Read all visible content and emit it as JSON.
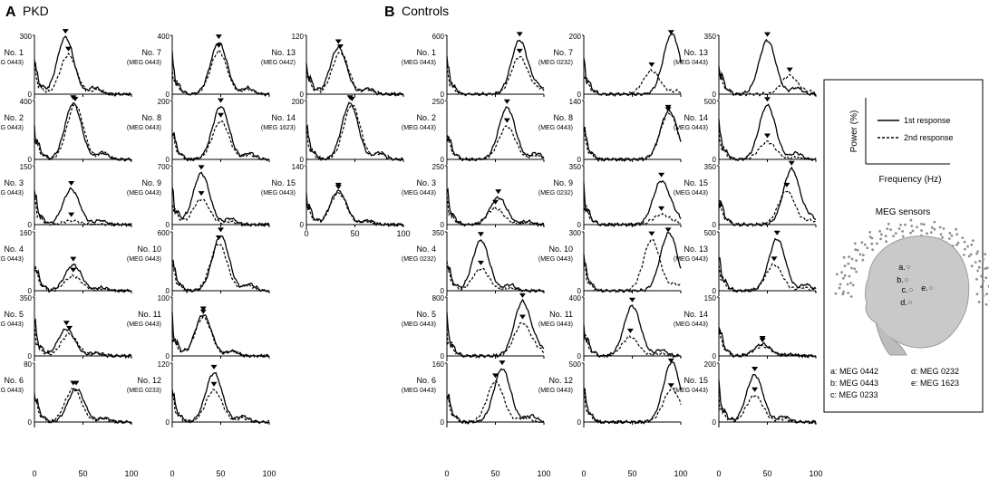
{
  "panels": {
    "A": {
      "letter": "A",
      "label": "PKD"
    },
    "B": {
      "letter": "B",
      "label": "Controls"
    }
  },
  "x_ticks": [
    "0",
    "50",
    "100"
  ],
  "legend": {
    "y_label": "Power (%)",
    "x_label": "Frequency (Hz)",
    "first": "1st response",
    "second": "2nd response"
  },
  "sensors": {
    "title": "MEG sensors",
    "markers": [
      "a",
      "b",
      "c",
      "d",
      "e"
    ],
    "list": [
      "a: MEG 0442",
      "b: MEG 0443",
      "c: MEG 0233",
      "d: MEG 0232",
      "e: MEG 1623"
    ]
  },
  "chart_data": [
    {
      "type": "line",
      "group": "PKD",
      "title": "No. 1",
      "sensor": "(MEG 0443)",
      "ymax_label": "300",
      "ylim": [
        0,
        300
      ],
      "xlim": [
        0,
        100
      ],
      "series": [
        {
          "name": "1st response",
          "peak_x": 32,
          "peak_y": 290
        },
        {
          "name": "2nd response",
          "peak_x": 35,
          "peak_y": 200
        }
      ]
    },
    {
      "type": "line",
      "group": "PKD",
      "title": "No. 2",
      "sensor": "(MEG 0443)",
      "ymax_label": "400",
      "ylim": [
        0,
        400
      ],
      "xlim": [
        0,
        100
      ],
      "series": [
        {
          "name": "1st response",
          "peak_x": 40,
          "peak_y": 380
        },
        {
          "name": "2nd response",
          "peak_x": 42,
          "peak_y": 370
        }
      ]
    },
    {
      "type": "line",
      "group": "PKD",
      "title": "No. 3",
      "sensor": "(MEG 0443)",
      "ymax_label": "150",
      "ylim": [
        0,
        150
      ],
      "xlim": [
        0,
        100
      ],
      "series": [
        {
          "name": "1st response",
          "peak_x": 38,
          "peak_y": 90
        },
        {
          "name": "2nd response",
          "peak_x": 38,
          "peak_y": 10
        }
      ]
    },
    {
      "type": "line",
      "group": "PKD",
      "title": "No. 4",
      "sensor": "(MEG 0443)",
      "ymax_label": "160",
      "ylim": [
        0,
        160
      ],
      "xlim": [
        0,
        100
      ],
      "series": [
        {
          "name": "1st response",
          "peak_x": 40,
          "peak_y": 70
        },
        {
          "name": "2nd response",
          "peak_x": 40,
          "peak_y": 40
        }
      ]
    },
    {
      "type": "line",
      "group": "PKD",
      "title": "No. 5",
      "sensor": "(MEG 0443)",
      "ymax_label": "350",
      "ylim": [
        0,
        350
      ],
      "xlim": [
        0,
        100
      ],
      "series": [
        {
          "name": "1st response",
          "peak_x": 33,
          "peak_y": 160
        },
        {
          "name": "2nd response",
          "peak_x": 36,
          "peak_y": 130
        }
      ]
    },
    {
      "type": "line",
      "group": "PKD",
      "title": "No. 6",
      "sensor": "(MEG 0443)",
      "ymax_label": "80",
      "ylim": [
        0,
        80
      ],
      "xlim": [
        0,
        100
      ],
      "series": [
        {
          "name": "1st response",
          "peak_x": 43,
          "peak_y": 45
        },
        {
          "name": "2nd response",
          "peak_x": 40,
          "peak_y": 45
        }
      ]
    },
    {
      "type": "line",
      "group": "PKD",
      "title": "No. 7",
      "sensor": "(MEG 0443)",
      "ymax_label": "400",
      "ylim": [
        0,
        400
      ],
      "xlim": [
        0,
        100
      ],
      "series": [
        {
          "name": "1st response",
          "peak_x": 48,
          "peak_y": 350
        },
        {
          "name": "2nd response",
          "peak_x": 48,
          "peak_y": 290
        }
      ]
    },
    {
      "type": "line",
      "group": "PKD",
      "title": "No. 8",
      "sensor": "(MEG 0443)",
      "ymax_label": "200",
      "ylim": [
        0,
        200
      ],
      "xlim": [
        0,
        100
      ],
      "series": [
        {
          "name": "1st response",
          "peak_x": 50,
          "peak_y": 180
        },
        {
          "name": "2nd response",
          "peak_x": 50,
          "peak_y": 130
        }
      ]
    },
    {
      "type": "line",
      "group": "PKD",
      "title": "No. 9",
      "sensor": "(MEG 0443)",
      "ymax_label": "700",
      "ylim": [
        0,
        700
      ],
      "xlim": [
        0,
        100
      ],
      "series": [
        {
          "name": "1st response",
          "peak_x": 30,
          "peak_y": 610
        },
        {
          "name": "2nd response",
          "peak_x": 30,
          "peak_y": 300
        }
      ]
    },
    {
      "type": "line",
      "group": "PKD",
      "title": "No. 10",
      "sensor": "(MEG 0443)",
      "ymax_label": "600",
      "ylim": [
        0,
        600
      ],
      "xlim": [
        0,
        100
      ],
      "series": [
        {
          "name": "1st response",
          "peak_x": 50,
          "peak_y": 560
        },
        {
          "name": "2nd response",
          "peak_x": 48,
          "peak_y": 480
        }
      ]
    },
    {
      "type": "line",
      "group": "PKD",
      "title": "No. 11",
      "sensor": "(MEG 0443)",
      "ymax_label": "100",
      "ylim": [
        0,
        100
      ],
      "xlim": [
        0,
        100
      ],
      "series": [
        {
          "name": "1st response",
          "peak_x": 32,
          "peak_y": 70
        },
        {
          "name": "2nd response",
          "peak_x": 32,
          "peak_y": 65
        }
      ]
    },
    {
      "type": "line",
      "group": "PKD",
      "title": "No. 12",
      "sensor": "(MEG 0233)",
      "ymax_label": "120",
      "ylim": [
        0,
        120
      ],
      "xlim": [
        0,
        100
      ],
      "series": [
        {
          "name": "1st response",
          "peak_x": 43,
          "peak_y": 100
        },
        {
          "name": "2nd response",
          "peak_x": 43,
          "peak_y": 65
        }
      ]
    },
    {
      "type": "line",
      "group": "PKD",
      "title": "No. 13",
      "sensor": "(MEG 0442)",
      "ymax_label": "120",
      "ylim": [
        0,
        120
      ],
      "xlim": [
        0,
        100
      ],
      "series": [
        {
          "name": "1st response",
          "peak_x": 33,
          "peak_y": 95
        },
        {
          "name": "2nd response",
          "peak_x": 35,
          "peak_y": 85
        }
      ]
    },
    {
      "type": "line",
      "group": "PKD",
      "title": "No. 14",
      "sensor": "(MEG 1623)",
      "ymax_label": "200",
      "ylim": [
        0,
        200
      ],
      "xlim": [
        0,
        100
      ],
      "series": [
        {
          "name": "1st response",
          "peak_x": 45,
          "peak_y": 190
        },
        {
          "name": "2nd response",
          "peak_x": 47,
          "peak_y": 185
        }
      ]
    },
    {
      "type": "line",
      "group": "PKD",
      "title": "No. 15",
      "sensor": "(MEG 0443)",
      "ymax_label": "140",
      "ylim": [
        0,
        140
      ],
      "xlim": [
        0,
        100
      ],
      "series": [
        {
          "name": "1st response",
          "peak_x": 33,
          "peak_y": 80
        },
        {
          "name": "2nd response",
          "peak_x": 33,
          "peak_y": 75
        }
      ]
    },
    {
      "type": "line",
      "group": "Controls",
      "title": "No. 1",
      "sensor": "(MEG 0443)",
      "ymax_label": "600",
      "ylim": [
        0,
        600
      ],
      "xlim": [
        0,
        100
      ],
      "series": [
        {
          "name": "1st response",
          "peak_x": 75,
          "peak_y": 550
        },
        {
          "name": "2nd response",
          "peak_x": 75,
          "peak_y": 380
        }
      ]
    },
    {
      "type": "line",
      "group": "Controls",
      "title": "No. 2",
      "sensor": "(MEG 0443)",
      "ymax_label": "250",
      "ylim": [
        0,
        250
      ],
      "xlim": [
        0,
        100
      ],
      "series": [
        {
          "name": "1st response",
          "peak_x": 62,
          "peak_y": 220
        },
        {
          "name": "2nd response",
          "peak_x": 62,
          "peak_y": 140
        }
      ]
    },
    {
      "type": "line",
      "group": "Controls",
      "title": "No. 3",
      "sensor": "(MEG 0443)",
      "ymax_label": "250",
      "ylim": [
        0,
        250
      ],
      "xlim": [
        0,
        100
      ],
      "series": [
        {
          "name": "1st response",
          "peak_x": 53,
          "peak_y": 115
        },
        {
          "name": "2nd response",
          "peak_x": 50,
          "peak_y": 70
        }
      ]
    },
    {
      "type": "line",
      "group": "Controls",
      "title": "No. 4",
      "sensor": "(MEG 0232)",
      "ymax_label": "350",
      "ylim": [
        0,
        350
      ],
      "xlim": [
        0,
        100
      ],
      "series": [
        {
          "name": "1st response",
          "peak_x": 35,
          "peak_y": 300
        },
        {
          "name": "2nd response",
          "peak_x": 35,
          "peak_y": 130
        }
      ]
    },
    {
      "type": "line",
      "group": "Controls",
      "title": "No. 5",
      "sensor": "(MEG 0443)",
      "ymax_label": "800",
      "ylim": [
        0,
        800
      ],
      "xlim": [
        0,
        100
      ],
      "series": [
        {
          "name": "1st response",
          "peak_x": 78,
          "peak_y": 740
        },
        {
          "name": "2nd response",
          "peak_x": 78,
          "peak_y": 450
        }
      ]
    },
    {
      "type": "line",
      "group": "Controls",
      "title": "No. 6",
      "sensor": "(MEG 0443)",
      "ymax_label": "160",
      "ylim": [
        0,
        160
      ],
      "xlim": [
        0,
        100
      ],
      "series": [
        {
          "name": "1st response",
          "peak_x": 57,
          "peak_y": 145
        },
        {
          "name": "2nd response",
          "peak_x": 50,
          "peak_y": 110
        }
      ]
    },
    {
      "type": "line",
      "group": "Controls",
      "title": "No. 7",
      "sensor": "(MEG 0232)",
      "ymax_label": "200",
      "ylim": [
        0,
        200
      ],
      "xlim": [
        0,
        100
      ],
      "series": [
        {
          "name": "1st response",
          "peak_x": 90,
          "peak_y": 190
        },
        {
          "name": "2nd response",
          "peak_x": 70,
          "peak_y": 80
        }
      ]
    },
    {
      "type": "line",
      "group": "Controls",
      "title": "No. 8",
      "sensor": "(MEG 0443)",
      "ymax_label": "140",
      "ylim": [
        0,
        140
      ],
      "xlim": [
        0,
        100
      ],
      "series": [
        {
          "name": "1st response",
          "peak_x": 87,
          "peak_y": 110
        },
        {
          "name": "2nd response",
          "peak_x": 87,
          "peak_y": 105
        }
      ]
    },
    {
      "type": "line",
      "group": "Controls",
      "title": "No. 9",
      "sensor": "(MEG 0232)",
      "ymax_label": "350",
      "ylim": [
        0,
        350
      ],
      "xlim": [
        0,
        100
      ],
      "series": [
        {
          "name": "1st response",
          "peak_x": 80,
          "peak_y": 260
        },
        {
          "name": "2nd response",
          "peak_x": 80,
          "peak_y": 60
        }
      ]
    },
    {
      "type": "line",
      "group": "Controls",
      "title": "No. 10",
      "sensor": "(MEG 0443)",
      "ymax_label": "300",
      "ylim": [
        0,
        300
      ],
      "xlim": [
        0,
        100
      ],
      "series": [
        {
          "name": "1st response",
          "peak_x": 87,
          "peak_y": 280
        },
        {
          "name": "2nd response",
          "peak_x": 70,
          "peak_y": 260
        }
      ]
    },
    {
      "type": "line",
      "group": "Controls",
      "title": "No. 11",
      "sensor": "(MEG 0443)",
      "ymax_label": "400",
      "ylim": [
        0,
        400
      ],
      "xlim": [
        0,
        100
      ],
      "series": [
        {
          "name": "1st response",
          "peak_x": 50,
          "peak_y": 340
        },
        {
          "name": "2nd response",
          "peak_x": 48,
          "peak_y": 130
        }
      ]
    },
    {
      "type": "line",
      "group": "Controls",
      "title": "No. 12",
      "sensor": "(MEG 0443)",
      "ymax_label": "500",
      "ylim": [
        0,
        500
      ],
      "xlim": [
        0,
        100
      ],
      "series": [
        {
          "name": "1st response",
          "peak_x": 90,
          "peak_y": 470
        },
        {
          "name": "2nd response",
          "peak_x": 90,
          "peak_y": 260
        }
      ]
    },
    {
      "type": "line",
      "group": "Controls",
      "title": "No. 13",
      "sensor": "(MEG 0443)",
      "ymax_label": "350",
      "ylim": [
        0,
        350
      ],
      "xlim": [
        0,
        100
      ],
      "series": [
        {
          "name": "1st response",
          "peak_x": 50,
          "peak_y": 320
        },
        {
          "name": "2nd response",
          "peak_x": 73,
          "peak_y": 110
        }
      ]
    },
    {
      "type": "line",
      "group": "Controls",
      "title": "No. 14",
      "sensor": "(MEG 0443)",
      "ymax_label": "500",
      "ylim": [
        0,
        500
      ],
      "xlim": [
        0,
        100
      ],
      "series": [
        {
          "name": "1st response",
          "peak_x": 50,
          "peak_y": 460
        },
        {
          "name": "2nd response",
          "peak_x": 50,
          "peak_y": 150
        }
      ]
    },
    {
      "type": "line",
      "group": "Controls",
      "title": "No. 15",
      "sensor": "(MEG 0443)",
      "ymax_label": "350",
      "ylim": [
        0,
        350
      ],
      "xlim": [
        0,
        100
      ],
      "series": [
        {
          "name": "1st response",
          "peak_x": 75,
          "peak_y": 330
        },
        {
          "name": "2nd response",
          "peak_x": 70,
          "peak_y": 200
        }
      ]
    },
    {
      "type": "line",
      "group": "Controls",
      "title": "No. 13",
      "sensor": "(MEG 0443)",
      "ymax_label": "500",
      "ylim": [
        0,
        500
      ],
      "xlim": [
        0,
        100
      ],
      "series": [
        {
          "name": "1st response",
          "peak_x": 60,
          "peak_y": 440
        },
        {
          "name": "2nd response",
          "peak_x": 57,
          "peak_y": 220
        }
      ]
    },
    {
      "type": "line",
      "group": "Controls",
      "title": "No. 14",
      "sensor": "(MEG 0443)",
      "ymax_label": "150",
      "ylim": [
        0,
        150
      ],
      "xlim": [
        0,
        100
      ],
      "series": [
        {
          "name": "1st response",
          "peak_x": 45,
          "peak_y": 30
        },
        {
          "name": "2nd response",
          "peak_x": 45,
          "peak_y": 25
        }
      ]
    },
    {
      "type": "line",
      "group": "Controls",
      "title": "No. 15",
      "sensor": "(MEG 0443)",
      "ymax_label": "200",
      "ylim": [
        0,
        200
      ],
      "xlim": [
        0,
        100
      ],
      "series": [
        {
          "name": "1st response",
          "peak_x": 37,
          "peak_y": 160
        },
        {
          "name": "2nd response",
          "peak_x": 37,
          "peak_y": 90
        }
      ]
    }
  ]
}
